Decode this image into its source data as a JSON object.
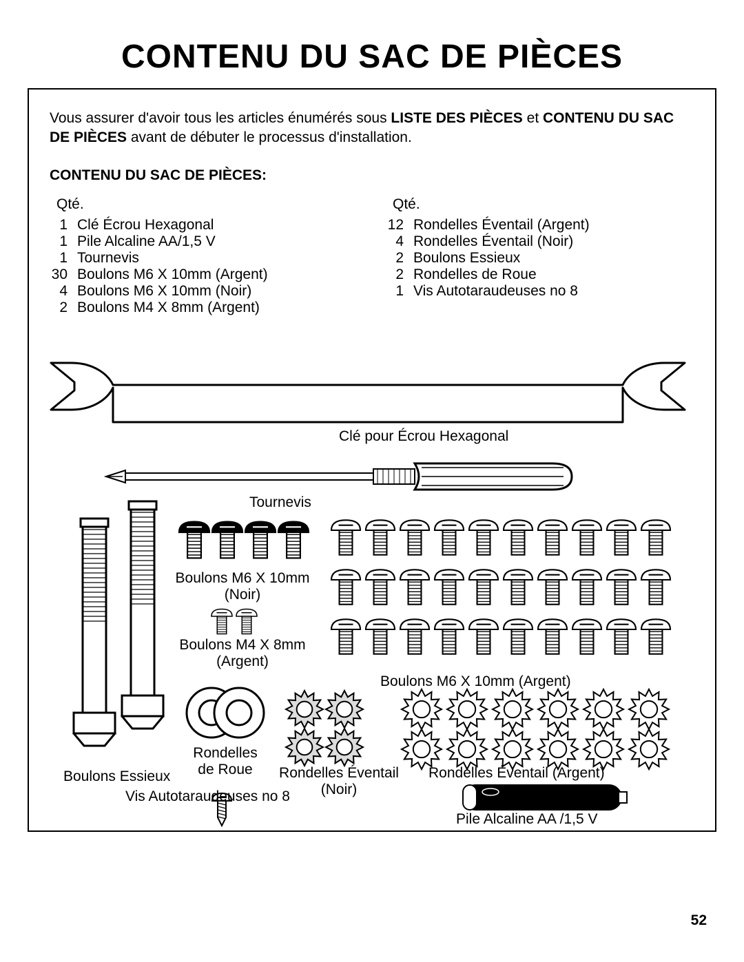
{
  "title": "CONTENU DU SAC DE PIÈCES",
  "intro": {
    "pre": "Vous assurer d'avoir tous les articles énumérés sous ",
    "bold1": "LISTE DES PIÈCES",
    "mid": " et ",
    "bold2": "CONTENU DU SAC DE PIÈCES",
    "post": " avant de débuter le processus d'installation."
  },
  "section_label": "CONTENU DU SAC DE PIÈCES:",
  "qty_header": "Qté.",
  "left_list": [
    {
      "q": "1",
      "d": "Clé Écrou Hexagonal"
    },
    {
      "q": "1",
      "d": "Pile Alcaline AA/1,5 V"
    },
    {
      "q": "1",
      "d": "Tournevis"
    },
    {
      "q": "30",
      "d": "Boulons M6 X 10mm (Argent)"
    },
    {
      "q": "4",
      "d": "Boulons M6 X 10mm (Noir)"
    },
    {
      "q": "2",
      "d": "Boulons M4 X 8mm (Argent)"
    }
  ],
  "right_list": [
    {
      "q": "12",
      "d": "Rondelles Éventail (Argent)"
    },
    {
      "q": "4",
      "d": "Rondelles Éventail (Noir)"
    },
    {
      "q": "2",
      "d": "Boulons Essieux"
    },
    {
      "q": "2",
      "d": "Rondelles de Roue"
    },
    {
      "q": "1",
      "d": "Vis Autotaraudeuses no 8"
    }
  ],
  "labels": {
    "wrench": "Clé pour Écrou Hexagonal",
    "screwdriver": "Tournevis",
    "m6_black": "Boulons M6 X 10mm\n(Noir)",
    "m4_silver": "Boulons M4 X 8mm\n(Argent)",
    "m6_silver": "Boulons M6 X 10mm (Argent)",
    "axle": "Boulons Essieux",
    "wheel_washers": "Rondelles\nde Roue",
    "fan_black": "Rondelles Éventail\n(Noir)",
    "fan_silver": "Rondelles Éventail (Argent)",
    "selftap": "Vis Autotaraudeuses no 8",
    "battery": "Pile Alcaline AA /1,5 V"
  },
  "page_number": "52",
  "style": {
    "stroke": "#000000",
    "fill_white": "#ffffff",
    "fill_black": "#000000",
    "fill_grey": "#dcdcdc",
    "stroke_w_thin": 2,
    "stroke_w_med": 3
  }
}
